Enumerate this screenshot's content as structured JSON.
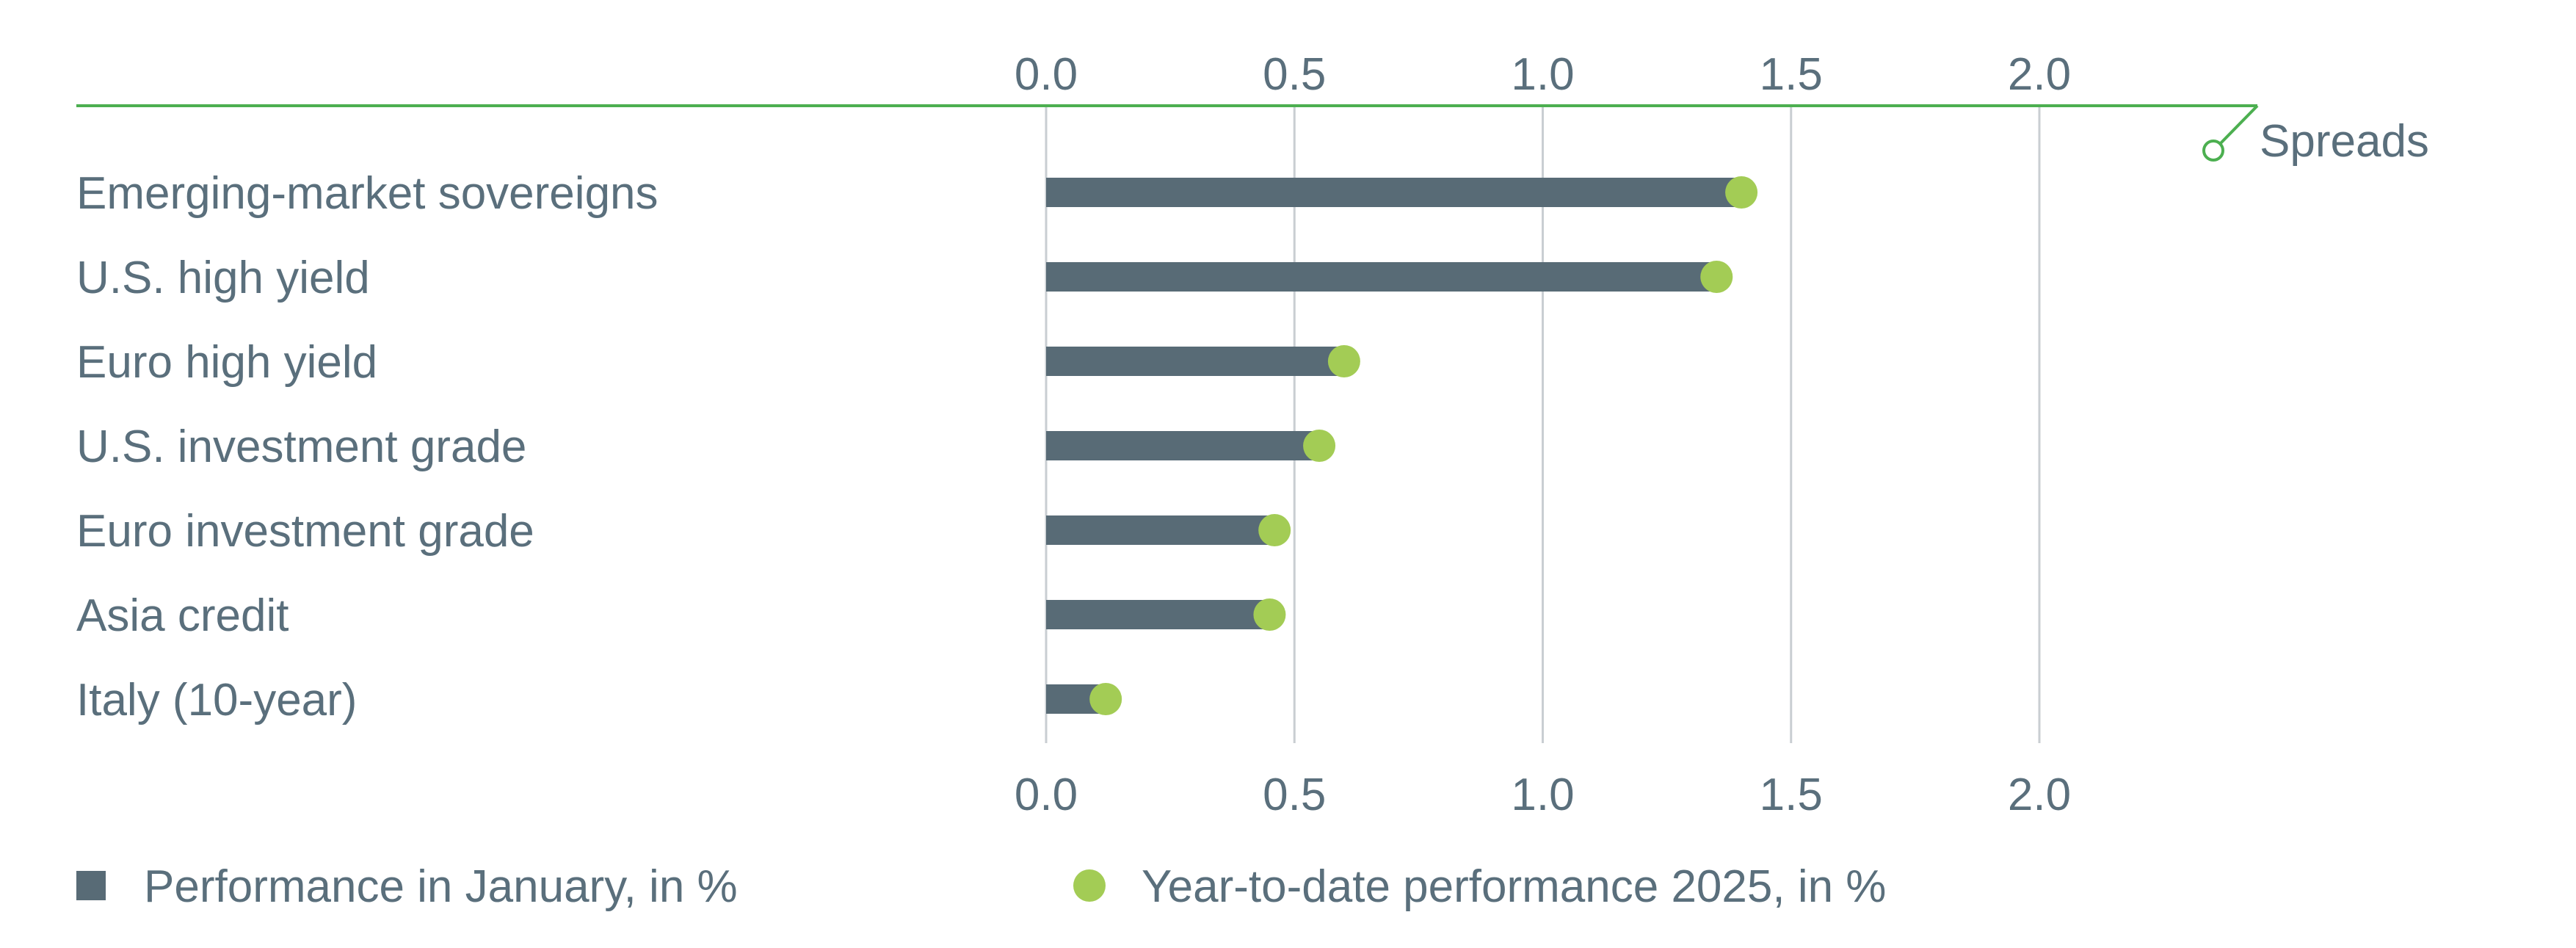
{
  "chart_data": {
    "type": "bar",
    "title": "",
    "section_label": "Spreads",
    "categories": [
      "Emerging-market sovereigns",
      "U.S. high yield",
      "Euro high yield",
      "U.S. investment grade",
      "Euro investment grade",
      "Asia credit",
      "Italy (10-year)"
    ],
    "series": [
      {
        "name": "Performance in January, in %",
        "marker": "bar",
        "color": "#586b76",
        "values": [
          1.4,
          1.35,
          0.6,
          0.55,
          0.46,
          0.45,
          0.12
        ]
      },
      {
        "name": "Year-to-date performance 2025, in %",
        "marker": "dot",
        "color": "#a3cc55",
        "values": [
          1.4,
          1.35,
          0.6,
          0.55,
          0.46,
          0.45,
          0.12
        ]
      }
    ],
    "xlim": [
      0,
      2.0
    ],
    "ticks": [
      "0.0",
      "0.5",
      "1.0",
      "1.5",
      "2.0"
    ],
    "xlabel": "",
    "ylabel": "",
    "grid": "vertical",
    "legend": "bottom",
    "axis_color": "#4caf50"
  }
}
